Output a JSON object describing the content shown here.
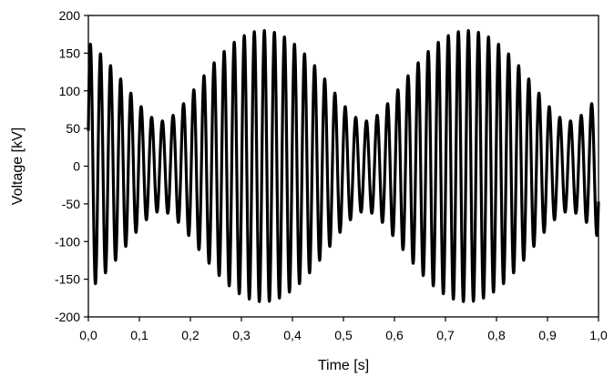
{
  "chart_data": {
    "type": "line",
    "title": "",
    "xlabel": "Time [s]",
    "ylabel": "Voltage [kV]",
    "xlim": [
      0.0,
      1.0
    ],
    "ylim": [
      -200,
      200
    ],
    "x_ticks": [
      0.0,
      0.1,
      0.2,
      0.3,
      0.4,
      0.5,
      0.6,
      0.7,
      0.8,
      0.9,
      1.0
    ],
    "x_tick_labels": [
      "0,0",
      "0,1",
      "0,2",
      "0,3",
      "0,4",
      "0,5",
      "0,6",
      "0,7",
      "0,8",
      "0,9",
      "1,0"
    ],
    "y_ticks": [
      200,
      150,
      100,
      50,
      0,
      -50,
      -100,
      -150,
      -200
    ],
    "y_tick_labels": [
      "200",
      "150",
      "100",
      "50",
      "0",
      "-50",
      "-100",
      "-150",
      "-200"
    ],
    "grid": false,
    "legend": "none",
    "series": [
      {
        "color": "#000000",
        "waveform": "beating sinusoid",
        "fundamental_frequency_hz": 50,
        "cycles_shown": 50,
        "amplitude_kv": 120,
        "beat_amplitude_kv": 60,
        "beat_frequency_hz": 2.5,
        "peak_envelope_kv": [
          -180,
          180
        ]
      }
    ]
  }
}
